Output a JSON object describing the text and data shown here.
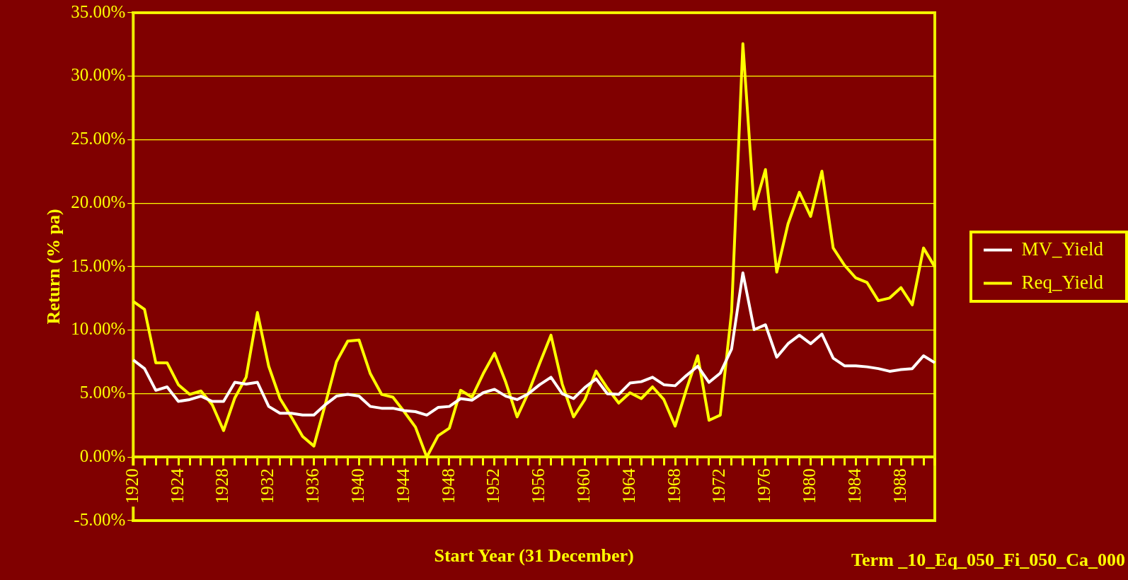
{
  "chart_data": {
    "type": "line",
    "xlabel": "Start Year (31 December)",
    "ylabel": "Return (% pa)",
    "annotations": [
      "Term _10_Eq_050_Fi_050_Ca_000"
    ],
    "categories": [
      "1920",
      null,
      null,
      null,
      "1924",
      null,
      null,
      null,
      "1928",
      null,
      null,
      null,
      "1932",
      null,
      null,
      null,
      "1936",
      null,
      null,
      null,
      "1940",
      null,
      null,
      null,
      "1944",
      null,
      null,
      null,
      "1948",
      null,
      null,
      null,
      "1952",
      null,
      null,
      null,
      "1956",
      null,
      null,
      null,
      "1960",
      null,
      null,
      null,
      "1964",
      null,
      null,
      null,
      "1968",
      null,
      null,
      null,
      "1972",
      null,
      null,
      null,
      "1976",
      null,
      null,
      null,
      "1980",
      null,
      null,
      null,
      "1984",
      null,
      null,
      null,
      "1988",
      null,
      null,
      null
    ],
    "series": [
      {
        "name": "MV_Yield",
        "color": "#ffffff",
        "values": [
          7.65,
          6.97,
          5.26,
          5.53,
          4.39,
          4.53,
          4.8,
          4.39,
          4.39,
          5.89,
          5.75,
          5.89,
          3.99,
          3.45,
          3.45,
          3.31,
          3.31,
          4.12,
          4.8,
          4.94,
          4.8,
          3.99,
          3.85,
          3.85,
          3.66,
          3.58,
          3.31,
          3.91,
          3.99,
          4.61,
          4.48,
          5.07,
          5.34,
          4.8,
          4.53,
          4.99,
          5.7,
          6.29,
          4.99,
          4.61,
          5.48,
          6.16,
          4.99,
          4.94,
          5.83,
          5.94,
          6.29,
          5.7,
          5.62,
          6.43,
          7.16,
          5.89,
          6.62,
          8.52,
          14.51,
          10.04,
          10.42,
          7.87,
          8.93,
          9.6,
          8.93,
          9.69,
          7.79,
          7.19,
          7.19,
          7.11,
          6.97,
          6.76,
          6.89,
          6.97,
          7.98,
          7.43
        ]
      },
      {
        "name": "Req_Yield",
        "color": "#ffff00",
        "values": [
          12.26,
          11.64,
          7.43,
          7.43,
          5.7,
          4.94,
          5.21,
          4.12,
          2.09,
          4.67,
          6.29,
          11.39,
          7.16,
          4.61,
          3.17,
          1.63,
          0.87,
          4.12,
          7.51,
          9.14,
          9.22,
          6.57,
          4.94,
          4.72,
          3.58,
          2.36,
          0.0,
          1.68,
          2.28,
          5.26,
          4.72,
          6.57,
          8.19,
          5.89,
          3.17,
          5.07,
          7.38,
          9.6,
          5.75,
          3.17,
          4.53,
          6.78,
          5.43,
          4.26,
          5.07,
          4.61,
          5.53,
          4.53,
          2.44,
          5.34,
          7.98,
          2.9,
          3.31,
          11.45,
          32.56,
          19.53,
          22.65,
          14.57,
          18.37,
          20.86,
          18.96,
          22.52,
          16.47,
          15.11,
          14.11,
          13.75,
          12.32,
          12.53,
          13.35,
          11.99,
          16.47,
          14.98
        ]
      }
    ],
    "ylim": [
      -5,
      35
    ],
    "yticks": [
      {
        "value": -5,
        "label": "-5.00%"
      },
      {
        "value": 0,
        "label": "0.00%"
      },
      {
        "value": 5,
        "label": "5.00%"
      },
      {
        "value": 10,
        "label": "10.00%"
      },
      {
        "value": 15,
        "label": "15.00%"
      },
      {
        "value": 20,
        "label": "20.00%"
      },
      {
        "value": 25,
        "label": "25.00%"
      },
      {
        "value": 30,
        "label": "30.00%"
      },
      {
        "value": 35,
        "label": "35.00%"
      }
    ],
    "grid": "y",
    "legend": "right",
    "marker": "none",
    "line_style": "solid"
  }
}
